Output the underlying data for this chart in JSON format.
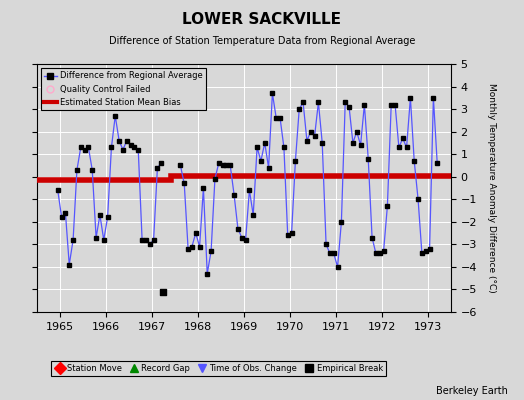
{
  "title": "LOWER SACKVILLE",
  "subtitle": "Difference of Station Temperature Data from Regional Average",
  "ylabel_right": "Monthly Temperature Anomaly Difference (°C)",
  "xlim": [
    1964.5,
    1973.5
  ],
  "ylim": [
    -6,
    5
  ],
  "yticks": [
    -6,
    -5,
    -4,
    -3,
    -2,
    -1,
    0,
    1,
    2,
    3,
    4,
    5
  ],
  "xticks": [
    1965,
    1966,
    1967,
    1968,
    1969,
    1970,
    1971,
    1972,
    1973
  ],
  "background_color": "#d8d8d8",
  "plot_bg_color": "#d8d8d8",
  "line_color": "#5555ff",
  "marker_color": "#000000",
  "bias_line_color": "#cc0000",
  "bias_value_early": -0.15,
  "bias_value_late": 0.05,
  "bias_break_x": 1967.42,
  "empirical_break_x": 1967.25,
  "empirical_break_y": -5.1,
  "watermark": "Berkeley Earth",
  "data_x": [
    1964.958,
    1965.042,
    1965.125,
    1965.208,
    1965.292,
    1965.375,
    1965.458,
    1965.542,
    1965.625,
    1965.708,
    1965.792,
    1965.875,
    1965.958,
    1966.042,
    1966.125,
    1966.208,
    1966.292,
    1966.375,
    1966.458,
    1966.542,
    1966.625,
    1966.708,
    1966.792,
    1966.875,
    1966.958,
    1967.042,
    1967.125,
    1967.208,
    1967.625,
    1967.708,
    1967.792,
    1967.875,
    1967.958,
    1968.042,
    1968.125,
    1968.208,
    1968.292,
    1968.375,
    1968.458,
    1968.542,
    1968.625,
    1968.708,
    1968.792,
    1968.875,
    1968.958,
    1969.042,
    1969.125,
    1969.208,
    1969.292,
    1969.375,
    1969.458,
    1969.542,
    1969.625,
    1969.708,
    1969.792,
    1969.875,
    1969.958,
    1970.042,
    1970.125,
    1970.208,
    1970.292,
    1970.375,
    1970.458,
    1970.542,
    1970.625,
    1970.708,
    1970.792,
    1970.875,
    1970.958,
    1971.042,
    1971.125,
    1971.208,
    1971.292,
    1971.375,
    1971.458,
    1971.542,
    1971.625,
    1971.708,
    1971.792,
    1971.875,
    1971.958,
    1972.042,
    1972.125,
    1972.208,
    1972.292,
    1972.375,
    1972.458,
    1972.542,
    1972.625,
    1972.708,
    1972.792,
    1972.875,
    1972.958,
    1973.042,
    1973.125,
    1973.208
  ],
  "data_y": [
    -0.6,
    -1.8,
    -1.6,
    -3.9,
    -2.8,
    0.3,
    1.3,
    1.2,
    1.3,
    0.3,
    -2.7,
    -1.7,
    -2.8,
    -1.8,
    1.3,
    2.7,
    1.6,
    1.2,
    1.6,
    1.4,
    1.3,
    1.2,
    -2.8,
    -2.8,
    -3.0,
    -2.8,
    0.4,
    0.6,
    0.5,
    -0.3,
    -3.2,
    -3.1,
    -2.5,
    -3.1,
    -0.5,
    -4.3,
    -3.3,
    -0.1,
    0.6,
    0.5,
    0.5,
    0.5,
    -0.8,
    -2.3,
    -2.7,
    -2.8,
    -0.6,
    -1.7,
    1.3,
    0.7,
    1.5,
    0.4,
    3.7,
    2.6,
    2.6,
    1.3,
    -2.6,
    -2.5,
    0.7,
    3.0,
    3.3,
    1.6,
    2.0,
    1.8,
    3.3,
    1.5,
    -3.0,
    -3.4,
    -3.4,
    -4.0,
    -2.0,
    3.3,
    3.1,
    1.5,
    2.0,
    1.4,
    3.2,
    0.8,
    -2.7,
    -3.4,
    -3.4,
    -3.3,
    -1.3,
    3.2,
    3.2,
    1.3,
    1.7,
    1.3,
    3.5,
    0.7,
    -1.0,
    -3.4,
    -3.3,
    -3.2,
    3.5,
    0.6
  ]
}
